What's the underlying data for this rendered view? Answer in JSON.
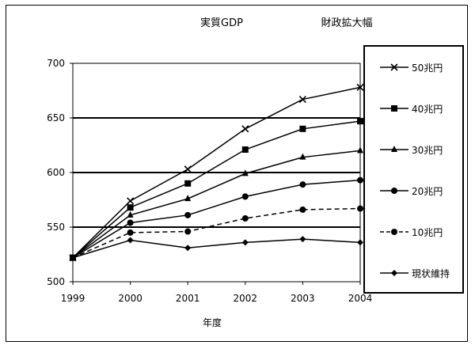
{
  "chart_data": {
    "type": "line",
    "title": "実質GDP",
    "legend_title": "財政拡大幅",
    "xlabel": "年度",
    "ylabel": "",
    "ylim": [
      500,
      700
    ],
    "yticks": [
      500,
      550,
      600,
      650,
      700
    ],
    "grid": "horizontal",
    "legend_position": "right",
    "x": [
      "1999",
      "2000",
      "2001",
      "2002",
      "2003",
      "2004"
    ],
    "series": [
      {
        "name": "50兆円",
        "marker": "x",
        "dash": false,
        "values": [
          522,
          574,
          603,
          640,
          667,
          678
        ]
      },
      {
        "name": "40兆円",
        "marker": "square",
        "dash": false,
        "values": [
          522,
          568,
          590,
          621,
          640,
          647
        ]
      },
      {
        "name": "30兆円",
        "marker": "triangle",
        "dash": false,
        "values": [
          522,
          561,
          576,
          599,
          614,
          620
        ]
      },
      {
        "name": "20兆円",
        "marker": "circle",
        "dash": false,
        "values": [
          522,
          554,
          561,
          578,
          589,
          593
        ]
      },
      {
        "name": "10兆円",
        "marker": "circle",
        "dash": true,
        "values": [
          522,
          545,
          546,
          558,
          566,
          567
        ]
      },
      {
        "name": "現状維持",
        "marker": "diamond",
        "dash": false,
        "values": [
          522,
          538,
          531,
          536,
          539,
          536
        ]
      }
    ]
  }
}
